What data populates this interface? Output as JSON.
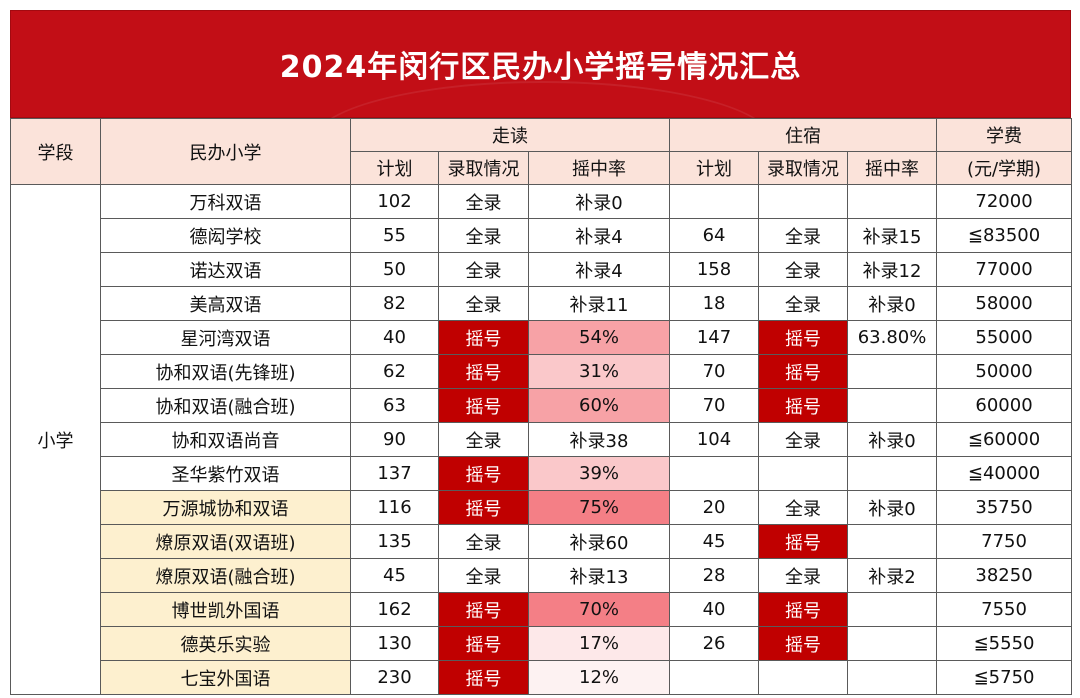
{
  "title": "2024年闵行区民办小学摇号情况汇总",
  "headers": {
    "stage": "学段",
    "school": "民办小学",
    "day": "走读",
    "board": "住宿",
    "fee_line1": "学费",
    "fee_line2": "(元/学期)",
    "plan": "计划",
    "admission": "录取情况",
    "rate": "摇中率"
  },
  "stage_value": "小学",
  "rows": [
    {
      "school": "万科双语",
      "day_plan": "102",
      "day_adm": "全录",
      "day_rate": "补录0",
      "board_plan": "",
      "board_adm": "",
      "board_rate": "",
      "fee": "72000"
    },
    {
      "school": "德闳学校",
      "day_plan": "55",
      "day_adm": "全录",
      "day_rate": "补录4",
      "board_plan": "64",
      "board_adm": "全录",
      "board_rate": "补录15",
      "fee": "≦83500"
    },
    {
      "school": "诺达双语",
      "day_plan": "50",
      "day_adm": "全录",
      "day_rate": "补录4",
      "board_plan": "158",
      "board_adm": "全录",
      "board_rate": "补录12",
      "fee": "77000"
    },
    {
      "school": "美高双语",
      "day_plan": "82",
      "day_adm": "全录",
      "day_rate": "补录11",
      "board_plan": "18",
      "board_adm": "全录",
      "board_rate": "补录0",
      "fee": "58000"
    },
    {
      "school": "星河湾双语",
      "day_plan": "40",
      "day_adm": "摇号",
      "day_rate": "54%",
      "board_plan": "147",
      "board_adm": "摇号",
      "board_rate": "63.80%",
      "fee": "55000"
    },
    {
      "school": "协和双语(先锋班)",
      "day_plan": "62",
      "day_adm": "摇号",
      "day_rate": "31%",
      "board_plan": "70",
      "board_adm": "摇号",
      "board_rate": "",
      "fee": "50000"
    },
    {
      "school": "协和双语(融合班)",
      "day_plan": "63",
      "day_adm": "摇号",
      "day_rate": "60%",
      "board_plan": "70",
      "board_adm": "摇号",
      "board_rate": "",
      "fee": "60000"
    },
    {
      "school": "协和双语尚音",
      "day_plan": "90",
      "day_adm": "全录",
      "day_rate": "补录38",
      "board_plan": "104",
      "board_adm": "全录",
      "board_rate": "补录0",
      "fee": "≦60000"
    },
    {
      "school": "圣华紫竹双语",
      "day_plan": "137",
      "day_adm": "摇号",
      "day_rate": "39%",
      "board_plan": "",
      "board_adm": "",
      "board_rate": "",
      "fee": "≦40000"
    },
    {
      "school": "万源城协和双语",
      "day_plan": "116",
      "day_adm": "摇号",
      "day_rate": "75%",
      "board_plan": "20",
      "board_adm": "全录",
      "board_rate": "补录0",
      "fee": "35750"
    },
    {
      "school": "燎原双语(双语班)",
      "day_plan": "135",
      "day_adm": "全录",
      "day_rate": "补录60",
      "board_plan": "45",
      "board_adm": "摇号",
      "board_rate": "",
      "fee": "7750"
    },
    {
      "school": "燎原双语(融合班)",
      "day_plan": "45",
      "day_adm": "全录",
      "day_rate": "补录13",
      "board_plan": "28",
      "board_adm": "全录",
      "board_rate": "补录2",
      "fee": "38250"
    },
    {
      "school": "博世凯外国语",
      "day_plan": "162",
      "day_adm": "摇号",
      "day_rate": "70%",
      "board_plan": "40",
      "board_adm": "摇号",
      "board_rate": "",
      "fee": "7550"
    },
    {
      "school": "德英乐实验",
      "day_plan": "130",
      "day_adm": "摇号",
      "day_rate": "17%",
      "board_plan": "26",
      "board_adm": "摇号",
      "board_rate": "",
      "fee": "≦5550"
    },
    {
      "school": "七宝外国语",
      "day_plan": "230",
      "day_adm": "摇号",
      "day_rate": "12%",
      "board_plan": "",
      "board_adm": "",
      "board_rate": "",
      "fee": "≦5750"
    }
  ],
  "colors": {
    "banner": "#c20e16",
    "header_bg": "#fbe3da",
    "lottery_red": "#c00000",
    "highlight_yellow": "#fdf0cf"
  }
}
